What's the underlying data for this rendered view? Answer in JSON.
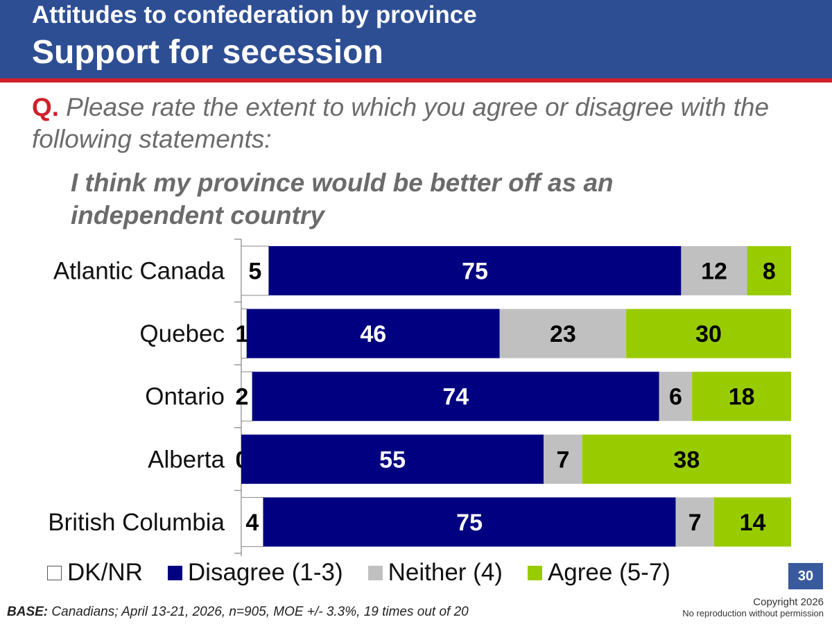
{
  "header": {
    "title": "Attitudes to confederation by province",
    "subtitle": "Support for secession"
  },
  "question": {
    "marker": "Q.",
    "text": "Please rate the extent to which you agree or disagree with the following statements:",
    "statement": "I think my province would be better off as an independent country"
  },
  "chart_data": {
    "type": "bar",
    "orientation": "horizontal",
    "stacked": true,
    "categories": [
      "Atlantic Canada",
      "Quebec",
      "Ontario",
      "Alberta",
      "British Columbia"
    ],
    "series": [
      {
        "name": "DK/NR",
        "color": "#ffffff",
        "label_color": "#000000",
        "values": [
          5,
          1,
          2,
          0,
          4
        ]
      },
      {
        "name": "Disagree (1-3)",
        "color": "#000080",
        "label_color": "#ffffff",
        "values": [
          75,
          46,
          74,
          55,
          75
        ]
      },
      {
        "name": "Neither (4)",
        "color": "#c0c0c0",
        "label_color": "#000000",
        "values": [
          12,
          23,
          6,
          7,
          7
        ]
      },
      {
        "name": "Agree (5-7)",
        "color": "#99cc00",
        "label_color": "#000000",
        "values": [
          8,
          30,
          18,
          38,
          14
        ]
      }
    ],
    "xlim": [
      0,
      100
    ],
    "legend": "bottom",
    "grid": false
  },
  "footer": {
    "base_label": "BASE:",
    "base_text": "Canadians; April 13-21, 2026, n=905, MOE +/- 3.3%, 19 times out of 20",
    "page_number": "30",
    "copyright": "Copyright 2026",
    "no_reproduction": "No reproduction without permission"
  }
}
